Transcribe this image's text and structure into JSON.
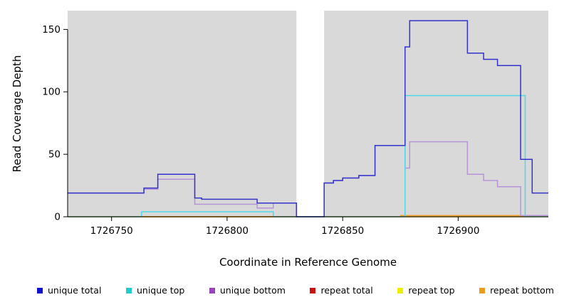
{
  "chart_data": {
    "type": "line",
    "subtype": "step",
    "title": "",
    "xlabel": "Coordinate in Reference Genome",
    "ylabel": "Read Coverage Depth",
    "xlim": [
      1726731,
      1726939
    ],
    "ylim": [
      0,
      165
    ],
    "xticks": [
      1726750,
      1726800,
      1726850,
      1726900
    ],
    "yticks": [
      0,
      50,
      100,
      150
    ],
    "grid": false,
    "legend_position": "bottom",
    "shaded_color": "#d9d9d9",
    "shaded_regions": [
      [
        1726731,
        1726830
      ],
      [
        1726842,
        1726939
      ]
    ],
    "series": [
      {
        "name": "repeat total",
        "color": "#cc2222",
        "points": [
          [
            1726731,
            0
          ],
          [
            1726939,
            0
          ]
        ]
      },
      {
        "name": "repeat top",
        "color": "#eeee22",
        "points": [
          [
            1726731,
            0
          ],
          [
            1726939,
            0
          ]
        ]
      },
      {
        "name": "repeat bottom",
        "color": "#f0a030",
        "points": [
          [
            1726731,
            0
          ],
          [
            1726875,
            1
          ],
          [
            1726939,
            1
          ]
        ]
      },
      {
        "name": "unique bottom",
        "color": "#b794d8",
        "points": [
          [
            1726731,
            19
          ],
          [
            1726764,
            22
          ],
          [
            1726770,
            30
          ],
          [
            1726786,
            10
          ],
          [
            1726813,
            7
          ],
          [
            1726820,
            11
          ],
          [
            1726830,
            0
          ],
          [
            1726842,
            27
          ],
          [
            1726846,
            29
          ],
          [
            1726850,
            31
          ],
          [
            1726857,
            33
          ],
          [
            1726864,
            57
          ],
          [
            1726877,
            39
          ],
          [
            1726879,
            60
          ],
          [
            1726904,
            34
          ],
          [
            1726911,
            29
          ],
          [
            1726917,
            24
          ],
          [
            1726927,
            1
          ],
          [
            1726939,
            1
          ]
        ]
      },
      {
        "name": "unique top",
        "color": "#4fd8e8",
        "points": [
          [
            1726731,
            0
          ],
          [
            1726763,
            4
          ],
          [
            1726820,
            0
          ],
          [
            1726877,
            97
          ],
          [
            1726929,
            0
          ],
          [
            1726939,
            0
          ]
        ]
      },
      {
        "name": "unique total",
        "color": "#3333cc",
        "points": [
          [
            1726731,
            19
          ],
          [
            1726764,
            23
          ],
          [
            1726770,
            34
          ],
          [
            1726786,
            15
          ],
          [
            1726789,
            14
          ],
          [
            1726813,
            11
          ],
          [
            1726830,
            0
          ],
          [
            1726842,
            27
          ],
          [
            1726846,
            29
          ],
          [
            1726850,
            31
          ],
          [
            1726857,
            33
          ],
          [
            1726864,
            57
          ],
          [
            1726877,
            136
          ],
          [
            1726879,
            157
          ],
          [
            1726904,
            131
          ],
          [
            1726911,
            126
          ],
          [
            1726917,
            121
          ],
          [
            1726927,
            46
          ],
          [
            1726932,
            19
          ],
          [
            1726939,
            19
          ]
        ]
      }
    ],
    "legend": [
      {
        "label": "unique total",
        "color": "#1111cc"
      },
      {
        "label": "unique top",
        "color": "#22cccc"
      },
      {
        "label": "unique bottom",
        "color": "#9944bb"
      },
      {
        "label": "repeat total",
        "color": "#cc1111"
      },
      {
        "label": "repeat top",
        "color": "#eeee00"
      },
      {
        "label": "repeat bottom",
        "color": "#ee9922"
      }
    ]
  }
}
